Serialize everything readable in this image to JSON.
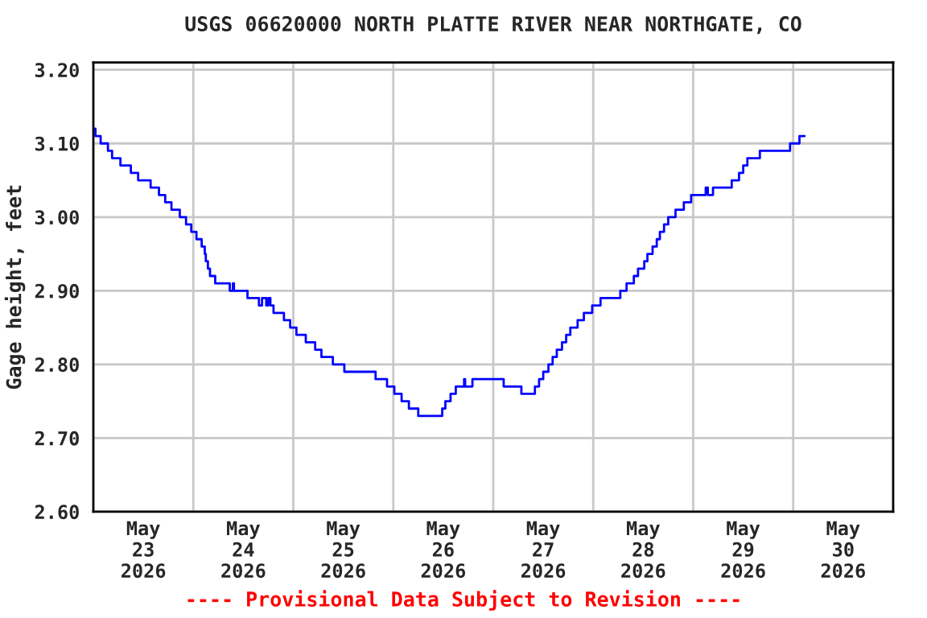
{
  "chart_data": {
    "type": "step",
    "title": "USGS 06620000 NORTH PLATTE RIVER NEAR NORTHGATE, CO",
    "ylabel": "Gage height, feet",
    "annotations": [
      "---- Provisional Data Subject to Revision ----"
    ],
    "series": [
      {
        "color": "#0000ff",
        "x": [
          "2026-05-23T00:00",
          "2026-05-23T00:30",
          "2026-05-23T01:45",
          "2026-05-23T03:30",
          "2026-05-23T04:30",
          "2026-05-23T06:30",
          "2026-05-23T09:00",
          "2026-05-23T10:45",
          "2026-05-23T13:45",
          "2026-05-23T15:45",
          "2026-05-23T17:15",
          "2026-05-23T18:45",
          "2026-05-23T20:45",
          "2026-05-23T22:15",
          "2026-05-23T23:30",
          "2026-05-24T00:45",
          "2026-05-24T02:00",
          "2026-05-24T02:45",
          "2026-05-24T03:00",
          "2026-05-24T03:30",
          "2026-05-24T04:00",
          "2026-05-24T05:15",
          "2026-05-24T08:45",
          "2026-05-24T09:30",
          "2026-05-24T09:45",
          "2026-05-24T13:00",
          "2026-05-24T15:45",
          "2026-05-24T16:30",
          "2026-05-24T17:30",
          "2026-05-24T18:00",
          "2026-05-24T18:30",
          "2026-05-24T19:15",
          "2026-05-24T21:45",
          "2026-05-24T23:15",
          "2026-05-25T00:45",
          "2026-05-25T03:00",
          "2026-05-25T05:15",
          "2026-05-25T06:45",
          "2026-05-25T09:30",
          "2026-05-25T12:15",
          "2026-05-25T19:45",
          "2026-05-25T22:30",
          "2026-05-26T00:15",
          "2026-05-26T02:00",
          "2026-05-26T03:45",
          "2026-05-26T06:00",
          "2026-05-26T11:45",
          "2026-05-26T12:30",
          "2026-05-26T13:45",
          "2026-05-26T15:00",
          "2026-05-26T17:00",
          "2026-05-26T17:15",
          "2026-05-26T19:00",
          "2026-05-27T02:30",
          "2026-05-27T06:45",
          "2026-05-27T10:00",
          "2026-05-27T11:00",
          "2026-05-27T12:00",
          "2026-05-27T13:15",
          "2026-05-27T14:15",
          "2026-05-27T15:15",
          "2026-05-27T16:30",
          "2026-05-27T17:30",
          "2026-05-27T18:30",
          "2026-05-27T20:15",
          "2026-05-27T21:45",
          "2026-05-27T23:45",
          "2026-05-28T01:45",
          "2026-05-28T06:30",
          "2026-05-28T08:00",
          "2026-05-28T09:45",
          "2026-05-28T10:45",
          "2026-05-28T12:15",
          "2026-05-28T13:00",
          "2026-05-28T14:15",
          "2026-05-28T15:15",
          "2026-05-28T16:00",
          "2026-05-28T17:00",
          "2026-05-28T18:00",
          "2026-05-28T19:45",
          "2026-05-28T21:45",
          "2026-05-28T23:30",
          "2026-05-29T03:00",
          "2026-05-29T03:30",
          "2026-05-29T04:45",
          "2026-05-29T09:15",
          "2026-05-29T11:00",
          "2026-05-29T12:00",
          "2026-05-29T13:00",
          "2026-05-29T16:00",
          "2026-05-29T23:15",
          "2026-05-30T01:30",
          "2026-05-30T02:45"
        ],
        "values": [
          3.12,
          3.11,
          3.1,
          3.09,
          3.08,
          3.07,
          3.06,
          3.05,
          3.04,
          3.03,
          3.02,
          3.01,
          3.0,
          2.99,
          2.98,
          2.97,
          2.96,
          2.95,
          2.94,
          2.93,
          2.92,
          2.91,
          2.9,
          2.91,
          2.9,
          2.89,
          2.88,
          2.89,
          2.88,
          2.89,
          2.88,
          2.87,
          2.86,
          2.85,
          2.84,
          2.83,
          2.82,
          2.81,
          2.8,
          2.79,
          2.78,
          2.77,
          2.76,
          2.75,
          2.74,
          2.73,
          2.74,
          2.75,
          2.76,
          2.77,
          2.78,
          2.77,
          2.78,
          2.77,
          2.76,
          2.77,
          2.78,
          2.79,
          2.8,
          2.81,
          2.82,
          2.83,
          2.84,
          2.85,
          2.86,
          2.87,
          2.88,
          2.89,
          2.9,
          2.91,
          2.92,
          2.93,
          2.94,
          2.95,
          2.96,
          2.97,
          2.98,
          2.99,
          3.0,
          3.01,
          3.02,
          3.03,
          3.04,
          3.03,
          3.04,
          3.05,
          3.06,
          3.07,
          3.08,
          3.09,
          3.1,
          3.11,
          3.11
        ]
      }
    ],
    "xlim": [
      "2026-05-23",
      "2026-05-31"
    ],
    "xticks": [
      {
        "value": "2026-05-23T12:00",
        "label": "May\n23\n2026"
      },
      {
        "value": "2026-05-24T12:00",
        "label": "May\n24\n2026"
      },
      {
        "value": "2026-05-25T12:00",
        "label": "May\n25\n2026"
      },
      {
        "value": "2026-05-26T12:00",
        "label": "May\n26\n2026"
      },
      {
        "value": "2026-05-27T12:00",
        "label": "May\n27\n2026"
      },
      {
        "value": "2026-05-28T12:00",
        "label": "May\n28\n2026"
      },
      {
        "value": "2026-05-29T12:00",
        "label": "May\n29\n2026"
      },
      {
        "value": "2026-05-30T12:00",
        "label": "May\n30\n2026"
      },
      {
        "value": "2026-05-24",
        "label": null
      },
      {
        "value": "2026-05-25",
        "label": null
      },
      {
        "value": "2026-05-26",
        "label": null
      },
      {
        "value": "2026-05-27",
        "label": null
      },
      {
        "value": "2026-05-28",
        "label": null
      },
      {
        "value": "2026-05-29",
        "label": null
      },
      {
        "value": "2026-05-30",
        "label": null
      }
    ],
    "ylim": [
      2.6,
      3.21
    ],
    "yticks": [
      {
        "value": 2.6,
        "label": "2.60"
      },
      {
        "value": 2.7,
        "label": "2.70"
      },
      {
        "value": 2.8,
        "label": "2.80"
      },
      {
        "value": 2.9,
        "label": "2.90"
      },
      {
        "value": 3.0,
        "label": "3.00"
      },
      {
        "value": 3.1,
        "label": "3.10"
      },
      {
        "value": 3.2,
        "label": "3.20"
      }
    ],
    "grid": true,
    "marker": "none",
    "line_style": "solid"
  }
}
